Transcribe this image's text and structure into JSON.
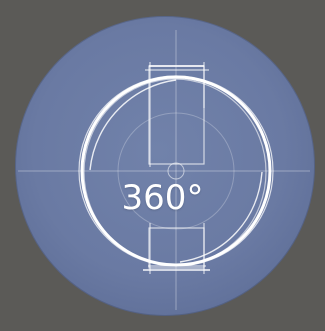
{
  "icon": {
    "label": "360°",
    "name": "360-rotation-icon",
    "colors": {
      "background": "#5b5a57",
      "disc": "#6a7aa3",
      "stroke": "#ffffff"
    }
  }
}
